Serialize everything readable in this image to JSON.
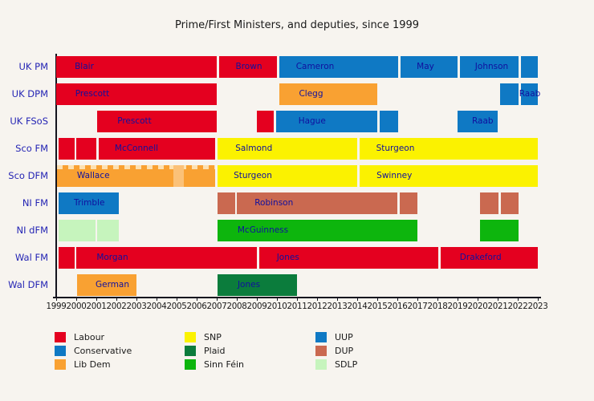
{
  "title": "Prime/First Ministers, and deputies, since 1999",
  "colors": {
    "background": "#f7f4ef",
    "axis": "#14141e",
    "row_label": "#2424b4",
    "bar_label": "#10109e",
    "tick_label": "#1a1a1a",
    "legend_label": "#1a1a1a",
    "parties": {
      "labour": "#e4001f",
      "conservative": "#0f79c4",
      "libdem": "#f9a132",
      "libdem_light": "#fbc178",
      "snp": "#fbf200",
      "plaid": "#0b7c3c",
      "sinnfein": "#0db50d",
      "uup": "#0f79c4",
      "dup": "#ca6950",
      "sdlp": "#c6f4bd"
    }
  },
  "chart_data": {
    "type": "gantt-timeline",
    "title": "Prime/First Ministers, and deputies, since 1999",
    "x_axis": {
      "min": 1999,
      "max": 2023,
      "ticks": [
        1999,
        2000,
        2001,
        2002,
        2003,
        2004,
        2005,
        2006,
        2007,
        2008,
        2009,
        2010,
        2011,
        2012,
        2013,
        2014,
        2015,
        2016,
        2017,
        2018,
        2019,
        2020,
        2021,
        2022,
        2023
      ]
    },
    "rows": [
      {
        "label": "UK PM",
        "bars": [
          {
            "name": "Blair",
            "party": "labour",
            "start": 1999.0,
            "end": 2007.0,
            "label_at": 2000.4
          },
          {
            "name": "Brown",
            "party": "labour",
            "start": 2007.1,
            "end": 2010.0,
            "label_at": 2008.6
          },
          {
            "name": "Cameron",
            "party": "conservative",
            "start": 2010.1,
            "end": 2016.05,
            "label_at": 2011.9
          },
          {
            "name": "May",
            "party": "conservative",
            "start": 2016.15,
            "end": 2019.0,
            "label_at": 2017.4
          },
          {
            "name": "Johnson",
            "party": "conservative",
            "start": 2019.1,
            "end": 2022.05,
            "label_at": 2020.7
          },
          {
            "name": "",
            "party": "conservative",
            "start": 2022.15,
            "end": 2023.0
          }
        ]
      },
      {
        "label": "UK DPM",
        "bars": [
          {
            "name": "Prescott",
            "party": "labour",
            "start": 1999.0,
            "end": 2007.0,
            "label_at": 2000.8
          },
          {
            "name": "Clegg",
            "party": "libdem",
            "start": 2010.1,
            "end": 2015.0,
            "label_at": 2011.7
          },
          {
            "name": "",
            "party": "conservative",
            "start": 2021.1,
            "end": 2022.05
          },
          {
            "name": "Raab",
            "party": "conservative",
            "start": 2022.15,
            "end": 2023.0,
            "label_at": 2022.6
          }
        ]
      },
      {
        "label": "UK FSoS",
        "bars": [
          {
            "name": "Prescott",
            "party": "labour",
            "start": 2001.05,
            "end": 2007.0,
            "label_at": 2002.9
          },
          {
            "name": "",
            "party": "labour",
            "start": 2009.0,
            "end": 2009.85
          },
          {
            "name": "Hague",
            "party": "conservative",
            "start": 2009.95,
            "end": 2015.0,
            "label_at": 2011.75
          },
          {
            "name": "",
            "party": "conservative",
            "start": 2015.1,
            "end": 2016.05
          },
          {
            "name": "Raab",
            "party": "conservative",
            "start": 2019.0,
            "end": 2021.0,
            "label_at": 2020.25
          }
        ]
      },
      {
        "label": "Sco FM",
        "bars": [
          {
            "name": "",
            "party": "labour",
            "start": 1999.1,
            "end": 1999.9
          },
          {
            "name": "",
            "party": "labour",
            "start": 2000.0,
            "end": 2001.0
          },
          {
            "name": "McConnell",
            "party": "labour",
            "start": 2001.1,
            "end": 2006.9,
            "label_at": 2003.0
          },
          {
            "name": "Salmond",
            "party": "snp",
            "start": 2007.05,
            "end": 2014.0,
            "label_at": 2008.85
          },
          {
            "name": "Sturgeon",
            "party": "snp",
            "start": 2014.1,
            "end": 2023.0,
            "label_at": 2015.9
          }
        ]
      },
      {
        "label": "Sco DFM",
        "bars": [
          {
            "name": "Wallace",
            "party": "libdem",
            "start": 1999.05,
            "end": 2006.9,
            "label_at": 2000.85,
            "hatch_top": true
          },
          {
            "name": "",
            "party": "libdem_light",
            "start": 2004.85,
            "end": 2005.35
          },
          {
            "name": "Sturgeon",
            "party": "snp",
            "start": 2007.05,
            "end": 2014.0,
            "label_at": 2008.8
          },
          {
            "name": "Swinney",
            "party": "snp",
            "start": 2014.1,
            "end": 2023.0,
            "label_at": 2015.85
          }
        ]
      },
      {
        "label": "NI FM",
        "bars": [
          {
            "name": "Trimble",
            "party": "uup",
            "start": 1999.1,
            "end": 2002.1,
            "label_at": 2000.65
          },
          {
            "name": "",
            "party": "dup",
            "start": 2007.05,
            "end": 2007.9
          },
          {
            "name": "Robinson",
            "party": "dup",
            "start": 2008.0,
            "end": 2016.0,
            "label_at": 2009.85
          },
          {
            "name": "",
            "party": "dup",
            "start": 2016.1,
            "end": 2017.0
          },
          {
            "name": "",
            "party": "dup",
            "start": 2020.1,
            "end": 2021.05
          },
          {
            "name": "",
            "party": "dup",
            "start": 2021.15,
            "end": 2022.05
          }
        ]
      },
      {
        "label": "NI dFM",
        "bars": [
          {
            "name": "",
            "party": "sdlp",
            "start": 1999.1,
            "end": 2000.95
          },
          {
            "name": "",
            "party": "sdlp",
            "start": 2001.05,
            "end": 2002.1
          },
          {
            "name": "McGuinness",
            "party": "sinnfein",
            "start": 2007.05,
            "end": 2017.0,
            "label_at": 2009.3
          },
          {
            "name": "",
            "party": "sinnfein",
            "start": 2020.1,
            "end": 2022.05
          }
        ]
      },
      {
        "label": "Wal FM",
        "bars": [
          {
            "name": "",
            "party": "labour",
            "start": 1999.1,
            "end": 1999.9
          },
          {
            "name": "Morgan",
            "party": "labour",
            "start": 2000.0,
            "end": 2009.0,
            "label_at": 2001.8
          },
          {
            "name": "Jones",
            "party": "labour",
            "start": 2009.1,
            "end": 2018.05,
            "label_at": 2010.55
          },
          {
            "name": "Drakeford",
            "party": "labour",
            "start": 2018.15,
            "end": 2023.0,
            "label_at": 2020.15
          }
        ]
      },
      {
        "label": "Wal DFM",
        "bars": [
          {
            "name": "German",
            "party": "libdem",
            "start": 2000.05,
            "end": 2003.0,
            "label_at": 2001.8
          },
          {
            "name": "Jones",
            "party": "plaid",
            "start": 2007.05,
            "end": 2011.0,
            "label_at": 2008.6
          }
        ]
      }
    ],
    "legend": {
      "columns": [
        [
          {
            "label": "Labour",
            "party": "labour"
          },
          {
            "label": "Conservative",
            "party": "conservative"
          },
          {
            "label": "Lib Dem",
            "party": "libdem"
          }
        ],
        [
          {
            "label": "SNP",
            "party": "snp"
          },
          {
            "label": "Plaid",
            "party": "plaid"
          },
          {
            "label": "Sinn Féin",
            "party": "sinnfein"
          }
        ],
        [
          {
            "label": "UUP",
            "party": "uup"
          },
          {
            "label": "DUP",
            "party": "dup"
          },
          {
            "label": "SDLP",
            "party": "sdlp"
          }
        ]
      ],
      "position": "bottom"
    }
  }
}
